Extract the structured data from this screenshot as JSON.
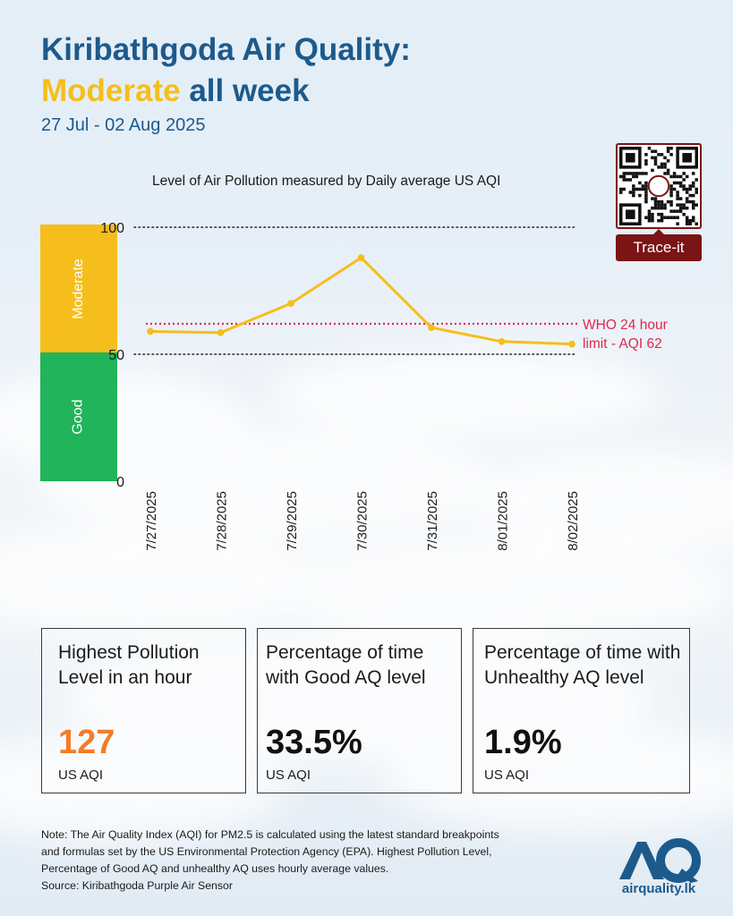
{
  "header": {
    "title_line1": "Kiribathgoda Air Quality:",
    "title_accent": "Moderate",
    "title_rest": " all week",
    "date_range": "27 Jul - 02 Aug 2025"
  },
  "bands": {
    "moderate_label": "Moderate",
    "good_label": "Good",
    "moderate_color": "#f5be1c",
    "good_color": "#22b45a"
  },
  "colors": {
    "line": "#f5be1c",
    "who_line": "#e0284f",
    "title_blue": "#1d5a8c",
    "highlight_orange": "#f47c2a",
    "qr_maroon": "#7b1414"
  },
  "qr": {
    "icon": "qr-code-icon",
    "button_label": "Trace-it"
  },
  "chart_data": {
    "type": "line",
    "title": "Level of Air Pollution measured by Daily average US AQI",
    "categories": [
      "7/27/2025",
      "7/28/2025",
      "7/29/2025",
      "7/30/2025",
      "7/31/2025",
      "8/01/2025",
      "8/02/2025"
    ],
    "values": [
      59,
      58.5,
      70,
      88,
      60.5,
      55,
      54
    ],
    "ylim": [
      0,
      100
    ],
    "yticks": [
      "0",
      "50",
      "100"
    ],
    "reference_line": {
      "value": 62,
      "label_line1": "WHO 24 hour",
      "label_line2": "limit - AQI 62"
    },
    "grid": "dotted lines at 50 and 100",
    "xlabel": "",
    "ylabel": ""
  },
  "stats": [
    {
      "label": "Highest Pollution Level in an hour",
      "value": "127",
      "unit": "US AQI",
      "highlight": true
    },
    {
      "label": "Percentage of time with Good AQ level",
      "value": "33.5%",
      "unit": "US AQI",
      "highlight": false
    },
    {
      "label": "Percentage of time with Unhealthy AQ level",
      "value": "1.9%",
      "unit": "US AQI",
      "highlight": false
    }
  ],
  "footer": {
    "note_line1": "Note: The Air Quality Index (AQI) for PM2.5 is calculated using the latest standard breakpoints",
    "note_line2": "and formulas set by the US Environmental Protection Agency (EPA). Highest Pollution Level,",
    "note_line3": "Percentage of Good AQ and unhealthy AQ uses hourly average values.",
    "source": "Source: Kiribathgoda Purple Air Sensor",
    "logo_mark": "AQ",
    "logo_text": "airquality.lk"
  }
}
